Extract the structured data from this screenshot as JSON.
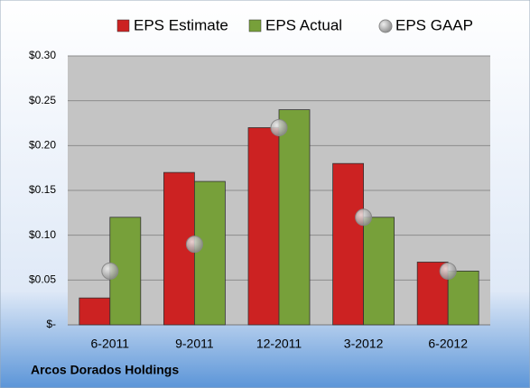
{
  "chart_data": {
    "type": "bar",
    "title": "Arcos Dorados Holdings",
    "categories": [
      "6-2011",
      "9-2011",
      "12-2011",
      "3-2012",
      "6-2012"
    ],
    "series": [
      {
        "name": "EPS Estimate",
        "color": "#cc2222",
        "values": [
          0.03,
          0.17,
          0.22,
          0.18,
          0.07
        ]
      },
      {
        "name": "EPS Actual",
        "color": "#77a03a",
        "values": [
          0.12,
          0.16,
          0.24,
          0.12,
          0.06
        ]
      },
      {
        "name": "EPS GAAP",
        "color": "#a8a8a8",
        "type": "scatter",
        "values": [
          0.06,
          0.09,
          0.22,
          0.12,
          0.06
        ]
      }
    ],
    "ylim": [
      0,
      0.3
    ],
    "yticks": [
      {
        "value": 0,
        "label": "$-"
      },
      {
        "value": 0.05,
        "label": "$0.05"
      },
      {
        "value": 0.1,
        "label": "$0.10"
      },
      {
        "value": 0.15,
        "label": "$0.15"
      },
      {
        "value": 0.2,
        "label": "$0.20"
      },
      {
        "value": 0.25,
        "label": "$0.25"
      },
      {
        "value": 0.3,
        "label": "$0.30"
      }
    ],
    "grid": true
  }
}
